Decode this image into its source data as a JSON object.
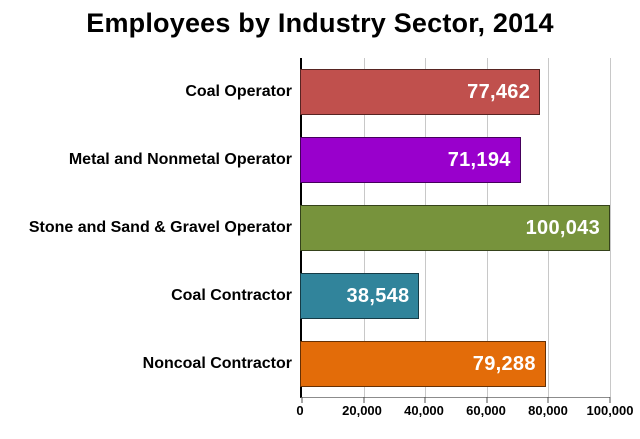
{
  "title": "Employees by Industry Sector, 2014",
  "colors": {
    "background": "#FFFFFF",
    "grid": "#C8C8C8",
    "axis": "#000000",
    "value_text": "#FFFFFF",
    "label_text": "#000000"
  },
  "chart_data": {
    "type": "bar",
    "orientation": "horizontal",
    "title": "Employees by Industry Sector, 2014",
    "categories": [
      "Coal Operator",
      "Metal and Nonmetal Operator",
      "Stone and Sand & Gravel Operator",
      "Coal Contractor",
      "Noncoal Contractor"
    ],
    "values": [
      77462,
      71194,
      100043,
      38548,
      79288
    ],
    "value_labels": [
      "77,462",
      "71,194",
      "100,043",
      "38,548",
      "79,288"
    ],
    "bar_colors": [
      "#C0504D",
      "#9900CC",
      "#77933C",
      "#31849B",
      "#E36C09"
    ],
    "xlabel": "",
    "ylabel": "",
    "xlim": [
      0,
      100000
    ],
    "x_tick_values": [
      0,
      20000,
      40000,
      60000,
      80000,
      100000
    ],
    "x_tick_labels": [
      "0",
      "20,000",
      "40,000",
      "60,000",
      "80,000",
      "100,000"
    ],
    "grid": true,
    "legend": false,
    "value_labels_position": "inside-end"
  }
}
